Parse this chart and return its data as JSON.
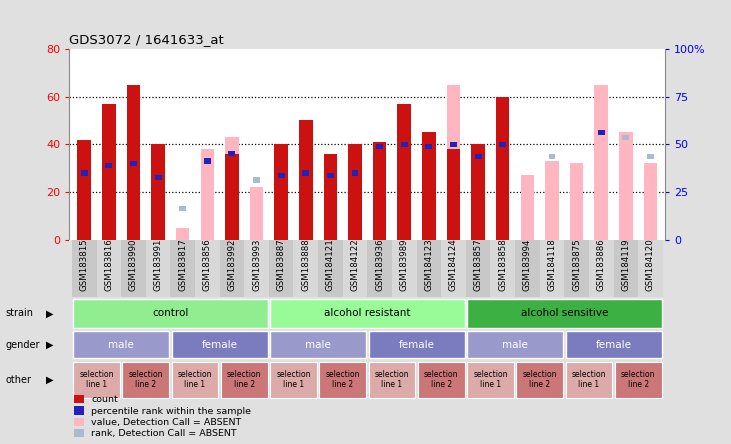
{
  "title": "GDS3072 / 1641633_at",
  "samples": [
    "GSM183815",
    "GSM183816",
    "GSM183990",
    "GSM183991",
    "GSM183817",
    "GSM183856",
    "GSM183992",
    "GSM183993",
    "GSM183887",
    "GSM183888",
    "GSM184121",
    "GSM184122",
    "GSM183936",
    "GSM183989",
    "GSM184123",
    "GSM184124",
    "GSM183857",
    "GSM183858",
    "GSM183994",
    "GSM184118",
    "GSM183875",
    "GSM183886",
    "GSM184119",
    "GSM184120"
  ],
  "red_bars": [
    42,
    57,
    65,
    40,
    0,
    0,
    36,
    0,
    40,
    50,
    36,
    40,
    41,
    57,
    45,
    38,
    40,
    60,
    0,
    0,
    0,
    0,
    0,
    0
  ],
  "pink_bars": [
    0,
    0,
    0,
    0,
    5,
    38,
    43,
    22,
    40,
    0,
    0,
    36,
    0,
    0,
    0,
    65,
    0,
    0,
    27,
    33,
    32,
    65,
    45,
    32
  ],
  "blue_sq": [
    28,
    31,
    32,
    26,
    0,
    33,
    36,
    0,
    27,
    28,
    27,
    28,
    39,
    40,
    39,
    40,
    35,
    40,
    0,
    0,
    0,
    45,
    0,
    0
  ],
  "lblue_sq": [
    0,
    0,
    0,
    0,
    13,
    0,
    0,
    25,
    0,
    0,
    0,
    0,
    0,
    0,
    0,
    0,
    0,
    0,
    0,
    35,
    0,
    0,
    43,
    35
  ],
  "strain_groups": [
    {
      "label": "control",
      "start": 0,
      "end": 8,
      "color": "#90EE90"
    },
    {
      "label": "alcohol resistant",
      "start": 8,
      "end": 16,
      "color": "#98FB98"
    },
    {
      "label": "alcohol sensitive",
      "start": 16,
      "end": 24,
      "color": "#3CB043"
    }
  ],
  "gender_groups": [
    {
      "label": "male",
      "start": 0,
      "end": 4,
      "color": "#9999CC"
    },
    {
      "label": "female",
      "start": 4,
      "end": 8,
      "color": "#7B7BC0"
    },
    {
      "label": "male",
      "start": 8,
      "end": 12,
      "color": "#9999CC"
    },
    {
      "label": "female",
      "start": 12,
      "end": 16,
      "color": "#7B7BC0"
    },
    {
      "label": "male",
      "start": 16,
      "end": 20,
      "color": "#9999CC"
    },
    {
      "label": "female",
      "start": 20,
      "end": 24,
      "color": "#7B7BC0"
    }
  ],
  "other_groups": [
    {
      "label": "selection\nline 1",
      "start": 0,
      "end": 2,
      "color": "#DDAAAA"
    },
    {
      "label": "selection\nline 2",
      "start": 2,
      "end": 4,
      "color": "#CC7777"
    },
    {
      "label": "selection\nline 1",
      "start": 4,
      "end": 6,
      "color": "#DDAAAA"
    },
    {
      "label": "selection\nline 2",
      "start": 6,
      "end": 8,
      "color": "#CC7777"
    },
    {
      "label": "selection\nline 1",
      "start": 8,
      "end": 10,
      "color": "#DDAAAA"
    },
    {
      "label": "selection\nline 2",
      "start": 10,
      "end": 12,
      "color": "#CC7777"
    },
    {
      "label": "selection\nline 1",
      "start": 12,
      "end": 14,
      "color": "#DDAAAA"
    },
    {
      "label": "selection\nline 2",
      "start": 14,
      "end": 16,
      "color": "#CC7777"
    },
    {
      "label": "selection\nline 1",
      "start": 16,
      "end": 18,
      "color": "#DDAAAA"
    },
    {
      "label": "selection\nline 2",
      "start": 18,
      "end": 20,
      "color": "#CC7777"
    },
    {
      "label": "selection\nline 1",
      "start": 20,
      "end": 22,
      "color": "#DDAAAA"
    },
    {
      "label": "selection\nline 2",
      "start": 22,
      "end": 24,
      "color": "#CC7777"
    }
  ],
  "ylim_left": [
    0,
    80
  ],
  "ylim_right": [
    0,
    100
  ],
  "yticks_left": [
    0,
    20,
    40,
    60,
    80
  ],
  "yticks_right": [
    0,
    25,
    50,
    75,
    100
  ],
  "bar_width": 0.55,
  "bg_color": "#E0E0E0",
  "plot_bg": "#FFFFFF",
  "red_color": "#CC1111",
  "pink_color": "#FFB6C1",
  "blue_color": "#2222BB",
  "lblue_color": "#AABBD0"
}
